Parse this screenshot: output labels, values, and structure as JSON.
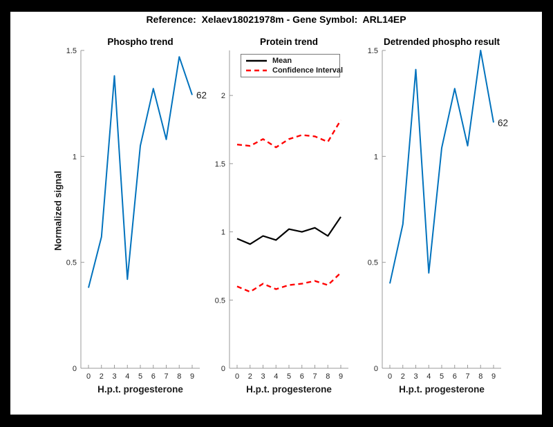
{
  "figure": {
    "title": "Reference:  Xelaev18021978m - Gene Symbol:  ARL14EP",
    "background_color": "#000000",
    "canvas_color": "#ffffff"
  },
  "legend": {
    "position": "top-left-of-protein-trend",
    "entries": [
      {
        "label": "Mean",
        "color": "#000000",
        "line_style": "solid"
      },
      {
        "label": "Confidence Interval",
        "color": "#ff0000",
        "line_style": "dashed"
      }
    ]
  },
  "chart_data": [
    {
      "type": "line",
      "title": "Phospho trend",
      "xlabel": "H.p.t. progesterone",
      "ylabel": "Normalized signal",
      "categories": [
        "0",
        "2",
        "3",
        "4",
        "5",
        "6",
        "7",
        "8",
        "9"
      ],
      "ylim": [
        0,
        1.5
      ],
      "ytick_labels": [
        "0",
        "0.5",
        "1",
        "1.5"
      ],
      "ytick_values": [
        0,
        0.5,
        1,
        1.5
      ],
      "grid": false,
      "series": [
        {
          "name": "phospho_signal",
          "color": "#0072bd",
          "line_style": "solid",
          "values": [
            0.38,
            0.62,
            1.38,
            0.42,
            1.05,
            1.32,
            1.08,
            1.47,
            1.29
          ]
        }
      ],
      "annotations": [
        {
          "text": "62",
          "attach": "last-point"
        }
      ]
    },
    {
      "type": "line",
      "title": "Protein trend",
      "xlabel": "H.p.t. progesterone",
      "ylabel": "",
      "categories": [
        "0",
        "2",
        "3",
        "4",
        "5",
        "6",
        "7",
        "8",
        "9"
      ],
      "ylim": [
        0,
        2.33
      ],
      "ytick_labels": [
        "0",
        "0.5",
        "1",
        "1.5",
        "2"
      ],
      "ytick_values": [
        0,
        0.5,
        1,
        1.5,
        2
      ],
      "grid": false,
      "series": [
        {
          "name": "mean",
          "legend_label": "Mean",
          "color": "#000000",
          "line_style": "solid",
          "values": [
            0.95,
            0.91,
            0.97,
            0.94,
            1.02,
            1.0,
            1.03,
            0.97,
            1.11
          ]
        },
        {
          "name": "confidence_interval_upper",
          "legend_label": "Confidence Interval",
          "color": "#ff0000",
          "line_style": "dashed",
          "values": [
            1.64,
            1.63,
            1.68,
            1.62,
            1.68,
            1.71,
            1.7,
            1.66,
            1.82
          ]
        },
        {
          "name": "confidence_interval_lower",
          "legend_label": "Confidence Interval",
          "color": "#ff0000",
          "line_style": "dashed",
          "values": [
            0.6,
            0.56,
            0.62,
            0.58,
            0.61,
            0.62,
            0.64,
            0.61,
            0.7
          ]
        }
      ],
      "annotations": []
    },
    {
      "type": "line",
      "title": "Detrended phospho result",
      "xlabel": "H.p.t. progesterone",
      "ylabel": "",
      "categories": [
        "0",
        "2",
        "3",
        "4",
        "5",
        "6",
        "7",
        "8",
        "9"
      ],
      "ylim": [
        0,
        1.5
      ],
      "ytick_labels": [
        "0",
        "0.5",
        "1",
        "1.5"
      ],
      "ytick_values": [
        0,
        0.5,
        1,
        1.5
      ],
      "grid": false,
      "series": [
        {
          "name": "detrended_phospho_signal",
          "color": "#0072bd",
          "line_style": "solid",
          "values": [
            0.4,
            0.68,
            1.41,
            0.45,
            1.04,
            1.32,
            1.05,
            1.5,
            1.16
          ]
        }
      ],
      "annotations": [
        {
          "text": "62",
          "attach": "last-point"
        }
      ]
    }
  ]
}
